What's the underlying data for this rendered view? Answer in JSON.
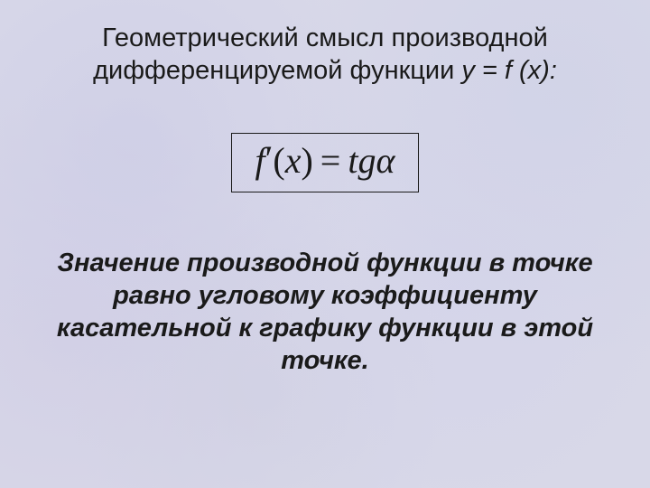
{
  "slide": {
    "background_color": "#d8d8e8",
    "text_color": "#1a1a1a",
    "title": {
      "line1": "Геометрический смысл производной",
      "line2_prefix": "дифференцируемой функции ",
      "line2_fn": "y = f (x):",
      "fontsize": 29,
      "weight": 400
    },
    "formula": {
      "expr_f": "f",
      "expr_prime": "′",
      "expr_open": "(",
      "expr_x": "x",
      "expr_close": ")",
      "expr_eq": "=",
      "expr_tg": "tg",
      "expr_alpha": "α",
      "fontsize": 40,
      "border_color": "#1a1a1a",
      "font_family": "Times New Roman"
    },
    "body": {
      "text": "Значение производной функции в точке равно угловому коэффициенту касательной к графику функции в этой точке.",
      "fontsize": 29,
      "weight": 700,
      "style": "italic"
    }
  }
}
